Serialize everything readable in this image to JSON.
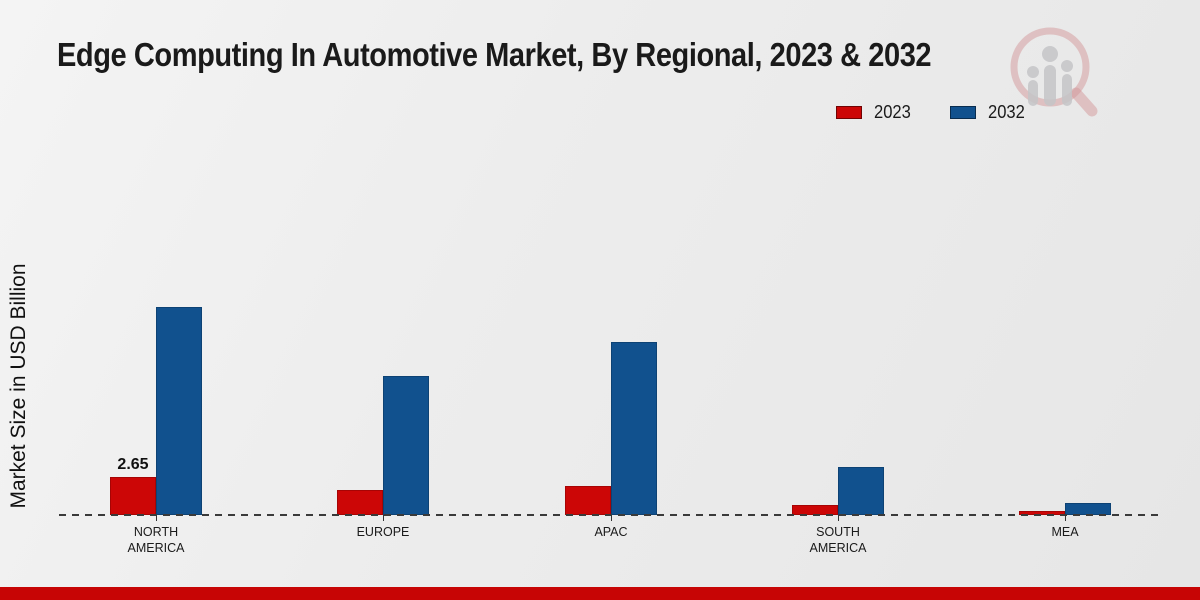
{
  "chart_data": {
    "type": "bar",
    "title": "Edge Computing In Automotive Market, By Regional, 2023 & 2032",
    "ylabel": "Market Size in USD Billion",
    "xlabel": "",
    "categories": [
      "NORTH AMERICA",
      "EUROPE",
      "APAC",
      "SOUTH AMERICA",
      "MEA"
    ],
    "series": [
      {
        "name": "2023",
        "color": "#cc0606",
        "values": [
          2.65,
          1.7,
          2.0,
          0.7,
          0.3
        ]
      },
      {
        "name": "2032",
        "color": "#11518e",
        "values": [
          14.4,
          9.6,
          12.0,
          3.3,
          0.8
        ]
      }
    ],
    "data_labels": [
      {
        "series_index": 0,
        "category_index": 0,
        "text": "2.65"
      }
    ],
    "ylim": [
      0,
      15.5
    ],
    "grid": false,
    "axis_line_style": "dashed",
    "legend_position": "top-right"
  },
  "icons": {
    "watermark": "magnifier-people-logo"
  },
  "colors": {
    "bar_2023": "#cc0606",
    "bar_2032": "#11518e",
    "baseline_dash": "#3a3a3a",
    "bottom_accent": "#c70505",
    "watermark_ring": "#d4989a",
    "watermark_figures": "#c5c5c8"
  }
}
